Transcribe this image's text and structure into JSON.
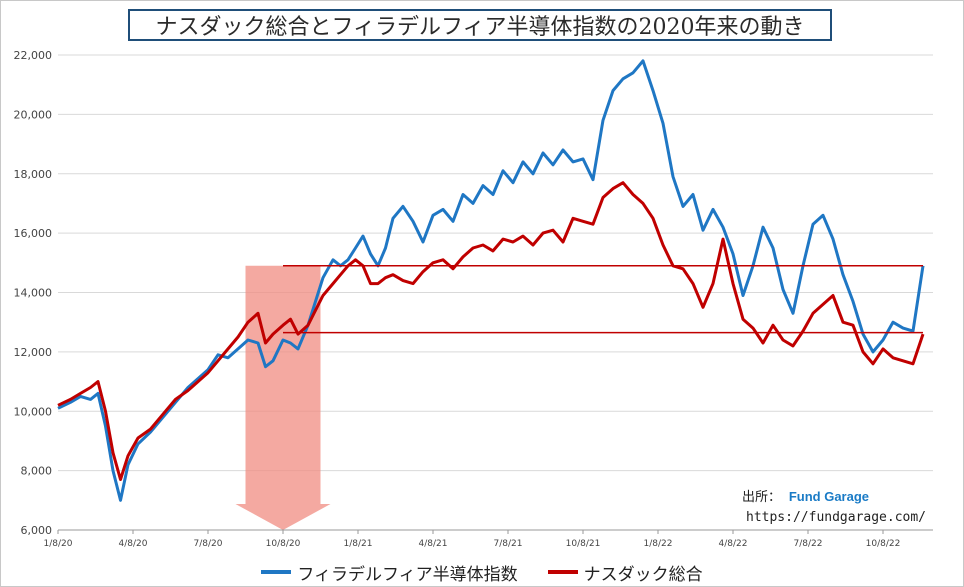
{
  "chart_data": {
    "type": "line",
    "title": "ナスダック総合とフィラデルフィア半導体指数の2020年来の動き",
    "xlabel": "",
    "ylabel": "",
    "ylim": [
      6000,
      22000
    ],
    "y_ticks": [
      "6,000",
      "8,000",
      "10,000",
      "12,000",
      "14,000",
      "16,000",
      "18,000",
      "20,000",
      "22,000"
    ],
    "x_tick_labels": [
      "1/8/20",
      "4/8/20",
      "7/8/20",
      "10/8/20",
      "1/8/21",
      "4/8/21",
      "7/8/21",
      "10/8/21",
      "1/8/22",
      "4/8/22",
      "7/8/22",
      "10/8/22"
    ],
    "grid": "horizontal",
    "legend_position": "bottom",
    "series": [
      {
        "name": "フィラデルフィア半導体指数",
        "color": "#1f77c4",
        "x": [
          0,
          0.5,
          0.9,
          1.3,
          1.6,
          1.9,
          2.2,
          2.5,
          2.8,
          3.2,
          3.7,
          4.2,
          4.7,
          5.2,
          5.6,
          6.0,
          6.4,
          6.8,
          7.2,
          7.6,
          8.0,
          8.3,
          8.6,
          9.0,
          9.3,
          9.6,
          10.0,
          10.3,
          10.6,
          11.0,
          11.3,
          11.6,
          11.9,
          12.2,
          12.5,
          12.8,
          13.1,
          13.4,
          13.8,
          14.2,
          14.6,
          15.0,
          15.4,
          15.8,
          16.2,
          16.6,
          17.0,
          17.4,
          17.8,
          18.2,
          18.6,
          19.0,
          19.4,
          19.8,
          20.2,
          20.6,
          21.0,
          21.4,
          21.8,
          22.2,
          22.6,
          23.0,
          23.4,
          23.8,
          24.2,
          24.6,
          25.0,
          25.4,
          25.8,
          26.2,
          26.6,
          27.0,
          27.4,
          27.8,
          28.2,
          28.6,
          29.0,
          29.4,
          29.8,
          30.2,
          30.6,
          31.0,
          31.4,
          31.8,
          32.2,
          32.6,
          33.0,
          33.4,
          33.8,
          34.2,
          34.6
        ],
        "values": [
          10100,
          10300,
          10500,
          10400,
          10600,
          9500,
          8000,
          7000,
          8200,
          8900,
          9300,
          9800,
          10300,
          10800,
          11100,
          11400,
          11900,
          11800,
          12100,
          12400,
          12300,
          11500,
          11700,
          12400,
          12300,
          12100,
          12900,
          13700,
          14500,
          15100,
          14900,
          15100,
          15500,
          15900,
          15300,
          14900,
          15500,
          16500,
          16900,
          16400,
          15700,
          16600,
          16800,
          16400,
          17300,
          17000,
          17600,
          17300,
          18100,
          17700,
          18400,
          18000,
          18700,
          18300,
          18800,
          18400,
          18500,
          17800,
          19800,
          20800,
          21200,
          21400,
          21800,
          20800,
          19700,
          17900,
          16900,
          17300,
          16100,
          16800,
          16200,
          15300,
          13900,
          14900,
          16200,
          15500,
          14100,
          13300,
          14900,
          16300,
          16600,
          15800,
          14600,
          13700,
          12600,
          12000,
          12400,
          13000,
          12800,
          12700,
          14900
        ]
      },
      {
        "name": "ナスダック総合",
        "color": "#c00000",
        "x": [
          0,
          0.5,
          0.9,
          1.3,
          1.6,
          1.9,
          2.2,
          2.5,
          2.8,
          3.2,
          3.7,
          4.2,
          4.7,
          5.2,
          5.6,
          6.0,
          6.4,
          6.8,
          7.2,
          7.6,
          8.0,
          8.3,
          8.6,
          9.0,
          9.3,
          9.6,
          10.0,
          10.3,
          10.6,
          11.0,
          11.3,
          11.6,
          11.9,
          12.2,
          12.5,
          12.8,
          13.1,
          13.4,
          13.8,
          14.2,
          14.6,
          15.0,
          15.4,
          15.8,
          16.2,
          16.6,
          17.0,
          17.4,
          17.8,
          18.2,
          18.6,
          19.0,
          19.4,
          19.8,
          20.2,
          20.6,
          21.0,
          21.4,
          21.8,
          22.2,
          22.6,
          23.0,
          23.4,
          23.8,
          24.2,
          24.6,
          25.0,
          25.4,
          25.8,
          26.2,
          26.6,
          27.0,
          27.4,
          27.8,
          28.2,
          28.6,
          29.0,
          29.4,
          29.8,
          30.2,
          30.6,
          31.0,
          31.4,
          31.8,
          32.2,
          32.6,
          33.0,
          33.4,
          33.8,
          34.2,
          34.6
        ],
        "values": [
          10200,
          10400,
          10600,
          10800,
          11000,
          10000,
          8600,
          7700,
          8500,
          9100,
          9400,
          9900,
          10400,
          10700,
          11000,
          11300,
          11700,
          12100,
          12500,
          13000,
          13300,
          12300,
          12600,
          12900,
          13100,
          12600,
          12900,
          13400,
          13900,
          14300,
          14600,
          14900,
          15100,
          14900,
          14300,
          14300,
          14500,
          14600,
          14400,
          14300,
          14700,
          15000,
          15100,
          14800,
          15200,
          15500,
          15600,
          15400,
          15800,
          15700,
          15900,
          15600,
          16000,
          16100,
          15700,
          16500,
          16400,
          16300,
          17200,
          17500,
          17700,
          17300,
          17000,
          16500,
          15600,
          14900,
          14800,
          14300,
          13500,
          14300,
          15800,
          14300,
          13100,
          12800,
          12300,
          12900,
          12400,
          12200,
          12700,
          13300,
          13600,
          13900,
          13000,
          12900,
          12000,
          11600,
          12100,
          11800,
          11700,
          11600,
          12600
        ]
      }
    ],
    "reference_lines": [
      14900,
      12650
    ],
    "annotations": [
      {
        "type": "arrow",
        "from_x": 7.5,
        "to_x": 10.5,
        "y_top": 14900,
        "y_bottom": 6000,
        "color": "#f08c82"
      }
    ]
  },
  "source": {
    "label": "出所：",
    "brand": "Fund Garage",
    "url": "https://fundgarage.com/"
  },
  "legend": [
    {
      "label": "フィラデルフィア半導体指数",
      "color": "#1f77c4"
    },
    {
      "label": "ナスダック総合",
      "color": "#c00000"
    }
  ]
}
